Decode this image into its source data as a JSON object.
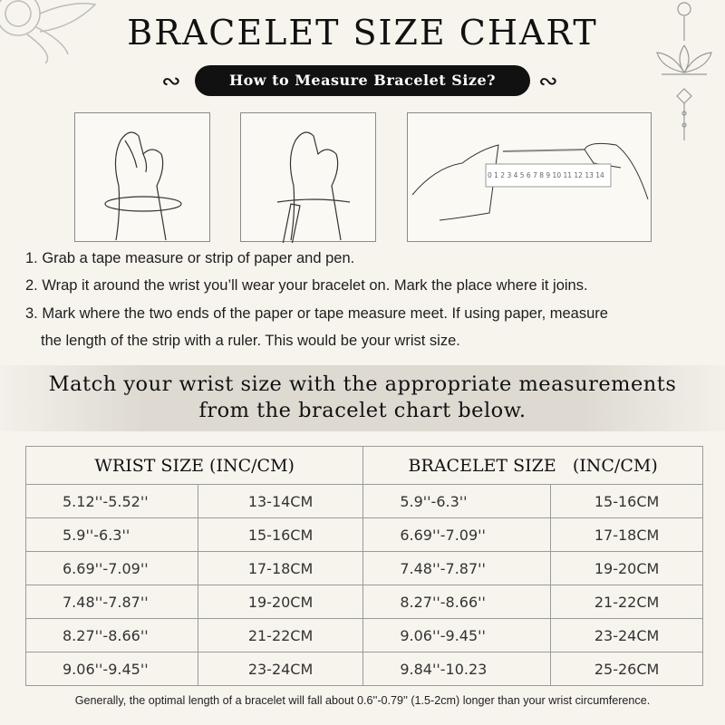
{
  "title": "BRACELET SIZE CHART",
  "subtitle": "How to Measure Bracelet Size?",
  "ruler_numbers": [
    "0",
    "1",
    "2",
    "3",
    "4",
    "5",
    "6",
    "7",
    "8",
    "9",
    "10",
    "11",
    "12",
    "13",
    "14"
  ],
  "steps": [
    "1. Grab a tape measure or strip of paper and pen.",
    "2. Wrap it around the wrist you’ll wear your bracelet on. Mark the place where it joins.",
    "3. Mark where the two ends of the paper or tape measure meet. If using paper, measure",
    "the length of the strip with a ruler. This would be your wrist size."
  ],
  "match_text": {
    "line1": "Match your wrist size with the appropriate measurements",
    "line2": "from the bracelet chart below."
  },
  "table": {
    "headers": [
      "WRIST SIZE (INC/CM)",
      "BRACELET SIZE   (INC/CM)"
    ],
    "rows": [
      [
        "5.12''-5.52''",
        "13-14CM",
        "5.9''-6.3''",
        "15-16CM"
      ],
      [
        "5.9''-6.3''",
        "15-16CM",
        "6.69''-7.09''",
        "17-18CM"
      ],
      [
        "6.69''-7.09''",
        "17-18CM",
        "7.48''-7.87''",
        "19-20CM"
      ],
      [
        "7.48''-7.87''",
        "19-20CM",
        "8.27''-8.66''",
        "21-22CM"
      ],
      [
        "8.27''-8.66''",
        "21-22CM",
        "9.06''-9.45''",
        "23-24CM"
      ],
      [
        "9.06''-9.45''",
        "23-24CM",
        "9.84''-10.23",
        "25-26CM"
      ]
    ]
  },
  "footnote": "Generally, the optimal length of a bracelet will fall about 0.6''-0.79'' (1.5-2cm) longer than your wrist circumference."
}
